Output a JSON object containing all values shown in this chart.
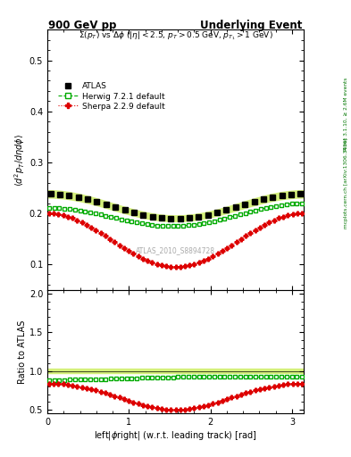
{
  "title_left": "900 GeV pp",
  "title_right": "Underlying Event",
  "annotation": "ATLAS_2010_S8894728",
  "subtitle": "$\\Sigma(p_T)$ vs $\\Delta\\phi$ ($|\\eta| < 2.5$, $p_T > 0.5$ GeV, $p_{T_1} > 1$ GeV)",
  "right_label": "Rivet 3.1.10, ≥ 2.6M events",
  "arxiv_label": "[arXiv:1306.3436]",
  "xlabel": "left|$\\phi$right| (w.r.t. leading track) [rad]",
  "ylabel": "$\\langle d^2 p_T / d\\eta d\\phi \\rangle$",
  "ylabel_ratio": "Ratio to ATLAS",
  "ylim": [
    0.05,
    0.56
  ],
  "ylim_ratio": [
    0.45,
    2.05
  ],
  "yticks": [
    0.1,
    0.2,
    0.3,
    0.4,
    0.5
  ],
  "yticks_ratio": [
    0.5,
    1.0,
    1.5,
    2.0
  ],
  "background_color": "#ffffff",
  "atlas_color": "#000000",
  "herwig_color": "#00aa00",
  "sherpa_color": "#dd0000",
  "band_color": "#d4f07a",
  "herwig_band_color": "#88cc44"
}
